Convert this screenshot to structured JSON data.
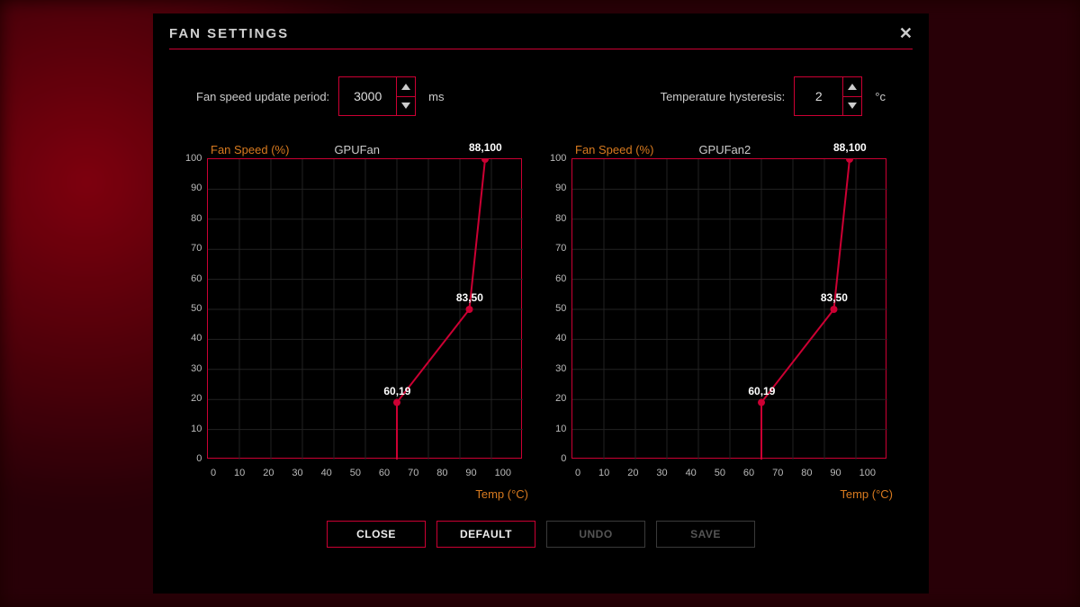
{
  "colors": {
    "accent": "#cc0033",
    "text": "#d0d0d0",
    "muted": "#bbbbbb",
    "orange": "#d87a1f",
    "bg": "#000000",
    "grid": "#222222",
    "disabled_border": "#3a3a3a",
    "disabled_text": "#555555"
  },
  "modal": {
    "title": "FAN SETTINGS"
  },
  "controls": {
    "update_period": {
      "label": "Fan speed update period:",
      "value": "3000",
      "unit": "ms"
    },
    "hysteresis": {
      "label": "Temperature hysteresis:",
      "value": "2",
      "unit": "°c"
    }
  },
  "axes": {
    "y_label": "Fan Speed (%)",
    "x_label": "Temp (°C)",
    "x_min": 0,
    "x_max": 100,
    "x_step": 10,
    "y_min": 0,
    "y_max": 100,
    "y_step": 10
  },
  "charts": [
    {
      "name": "GPUFan",
      "points": [
        {
          "temp": 60,
          "speed": 19,
          "label": "60,19"
        },
        {
          "temp": 83,
          "speed": 50,
          "label": "83,50"
        },
        {
          "temp": 88,
          "speed": 100,
          "label": "88,100"
        }
      ],
      "drop_to_zero_at_first_point": true
    },
    {
      "name": "GPUFan2",
      "points": [
        {
          "temp": 60,
          "speed": 19,
          "label": "60,19"
        },
        {
          "temp": 83,
          "speed": 50,
          "label": "83,50"
        },
        {
          "temp": 88,
          "speed": 100,
          "label": "88,100"
        }
      ],
      "drop_to_zero_at_first_point": true
    }
  ],
  "buttons": {
    "close": {
      "label": "CLOSE",
      "enabled": true
    },
    "default": {
      "label": "DEFAULT",
      "enabled": true
    },
    "undo": {
      "label": "UNDO",
      "enabled": false
    },
    "save": {
      "label": "SAVE",
      "enabled": false
    }
  }
}
